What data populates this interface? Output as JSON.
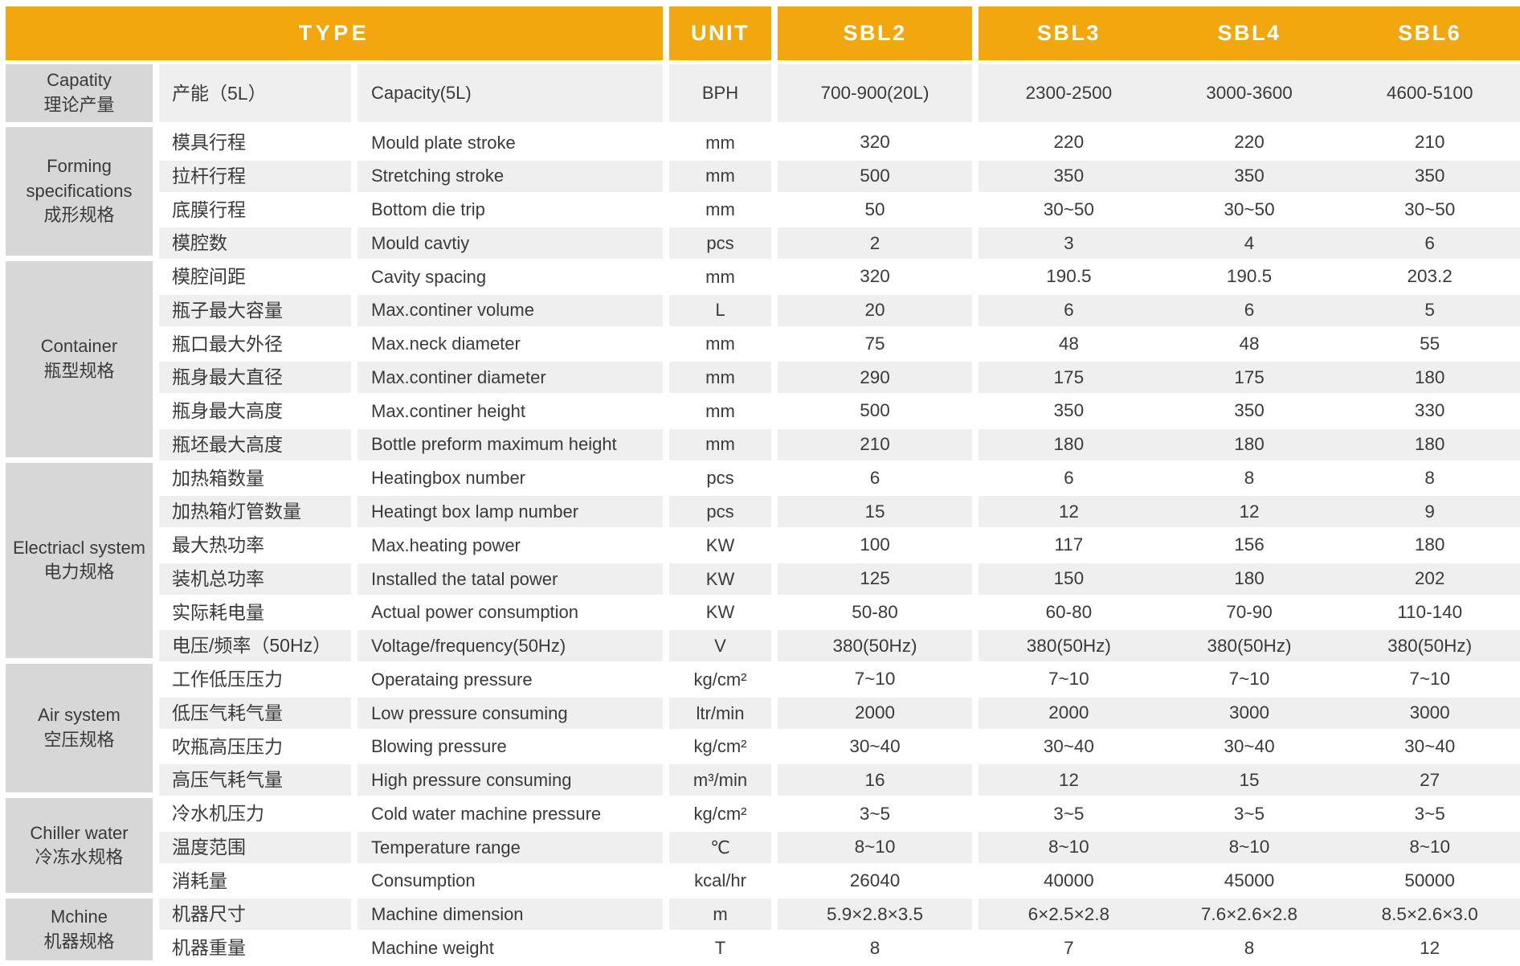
{
  "title_row": {
    "type": "TYPE",
    "unit": "UNIT",
    "models": [
      "SBL2",
      "SBL3",
      "SBL4",
      "SBL6"
    ]
  },
  "colors": {
    "header_bg": "#F2A70F",
    "header_text": "#FFFFFF",
    "group_bg": "#D7D7D7",
    "row_alt_bg": "#EFEFEF",
    "text": "#3A3A3A"
  },
  "groups": [
    {
      "en": "Capatity",
      "zh": "理论产量",
      "rows": [
        {
          "zh": "产能（5L）",
          "en": "Capacity(5L)",
          "unit": "BPH",
          "values": [
            "700-900(20L)",
            "2300-2500",
            "3000-3600",
            "4600-5100"
          ]
        }
      ]
    },
    {
      "en": "Forming specifications",
      "zh": "成形规格",
      "rows": [
        {
          "zh": "模具行程",
          "en": "Mould plate stroke",
          "unit": "mm",
          "values": [
            "320",
            "220",
            "220",
            "210"
          ]
        },
        {
          "zh": "拉杆行程",
          "en": "Stretching stroke",
          "unit": "mm",
          "values": [
            "500",
            "350",
            "350",
            "350"
          ]
        },
        {
          "zh": "底膜行程",
          "en": "Bottom die trip",
          "unit": "mm",
          "values": [
            "50",
            "30~50",
            "30~50",
            "30~50"
          ]
        },
        {
          "zh": "模腔数",
          "en": "Mould cavtiy",
          "unit": "pcs",
          "values": [
            "2",
            "3",
            "4",
            "6"
          ]
        }
      ]
    },
    {
      "en": "Container",
      "zh": "瓶型规格",
      "rows": [
        {
          "zh": "模腔间距",
          "en": "Cavity spacing",
          "unit": "mm",
          "values": [
            "320",
            "190.5",
            "190.5",
            "203.2"
          ]
        },
        {
          "zh": "瓶子最大容量",
          "en": "Max.continer volume",
          "unit": "L",
          "values": [
            "20",
            "6",
            "6",
            "5"
          ]
        },
        {
          "zh": "瓶口最大外径",
          "en": "Max.neck diameter",
          "unit": "mm",
          "values": [
            "75",
            "48",
            "48",
            "55"
          ]
        },
        {
          "zh": "瓶身最大直径",
          "en": "Max.continer diameter",
          "unit": "mm",
          "values": [
            "290",
            "175",
            "175",
            "180"
          ]
        },
        {
          "zh": "瓶身最大高度",
          "en": "Max.continer height",
          "unit": "mm",
          "values": [
            "500",
            "350",
            "350",
            "330"
          ]
        },
        {
          "zh": "瓶坯最大高度",
          "en": "Bottle preform maximum height",
          "unit": "mm",
          "values": [
            "210",
            "180",
            "180",
            "180"
          ]
        }
      ]
    },
    {
      "en": "Electriacl system",
      "zh": "电力规格",
      "rows": [
        {
          "zh": "加热箱数量",
          "en": "Heatingbox number",
          "unit": "pcs",
          "values": [
            "6",
            "6",
            "8",
            "8"
          ]
        },
        {
          "zh": "加热箱灯管数量",
          "en": "Heatingt box lamp number",
          "unit": "pcs",
          "values": [
            "15",
            "12",
            "12",
            "9"
          ]
        },
        {
          "zh": "最大热功率",
          "en": "Max.heating power",
          "unit": "KW",
          "values": [
            "100",
            "117",
            "156",
            "180"
          ]
        },
        {
          "zh": "装机总功率",
          "en": "Installed the tatal power",
          "unit": "KW",
          "values": [
            "125",
            "150",
            "180",
            "202"
          ]
        },
        {
          "zh": "实际耗电量",
          "en": "Actual power consumption",
          "unit": "KW",
          "values": [
            "50-80",
            "60-80",
            "70-90",
            "110-140"
          ]
        },
        {
          "zh": "电压/频率（50Hz）",
          "en": "Voltage/frequency(50Hz)",
          "unit": "V",
          "values": [
            "380(50Hz)",
            "380(50Hz)",
            "380(50Hz)",
            "380(50Hz)"
          ]
        }
      ]
    },
    {
      "en": "Air system",
      "zh": "空压规格",
      "rows": [
        {
          "zh": "工作低压压力",
          "en": "Operataing pressure",
          "unit": "kg/cm²",
          "values": [
            "7~10",
            "7~10",
            "7~10",
            "7~10"
          ]
        },
        {
          "zh": "低压气耗气量",
          "en": "Low pressure consuming",
          "unit": "ltr/min",
          "values": [
            "2000",
            "2000",
            "3000",
            "3000"
          ]
        },
        {
          "zh": "吹瓶高压压力",
          "en": "Blowing pressure",
          "unit": "kg/cm²",
          "values": [
            "30~40",
            "30~40",
            "30~40",
            "30~40"
          ]
        },
        {
          "zh": "高压气耗气量",
          "en": "High pressure consuming",
          "unit": "m³/min",
          "values": [
            "16",
            "12",
            "15",
            "27"
          ]
        }
      ]
    },
    {
      "en": "Chiller water",
      "zh": "冷冻水规格",
      "rows": [
        {
          "zh": "冷水机压力",
          "en": "Cold water machine pressure",
          "unit": "kg/cm²",
          "values": [
            "3~5",
            "3~5",
            "3~5",
            "3~5"
          ]
        },
        {
          "zh": "温度范围",
          "en": "Temperature range",
          "unit": "℃",
          "values": [
            "8~10",
            "8~10",
            "8~10",
            "8~10"
          ]
        },
        {
          "zh": "消耗量",
          "en": "Consumption",
          "unit": "kcal/hr",
          "values": [
            "26040",
            "40000",
            "45000",
            "50000"
          ]
        }
      ]
    },
    {
      "en": "Mchine",
      "zh": "机器规格",
      "rows": [
        {
          "zh": "机器尺寸",
          "en": "Machine dimension",
          "unit": "m",
          "values": [
            "5.9×2.8×3.5",
            "6×2.5×2.8",
            "7.6×2.6×2.8",
            "8.5×2.6×3.0"
          ]
        },
        {
          "zh": "机器重量",
          "en": "Machine weight",
          "unit": "T",
          "values": [
            "8",
            "7",
            "8",
            "12"
          ]
        }
      ]
    }
  ]
}
